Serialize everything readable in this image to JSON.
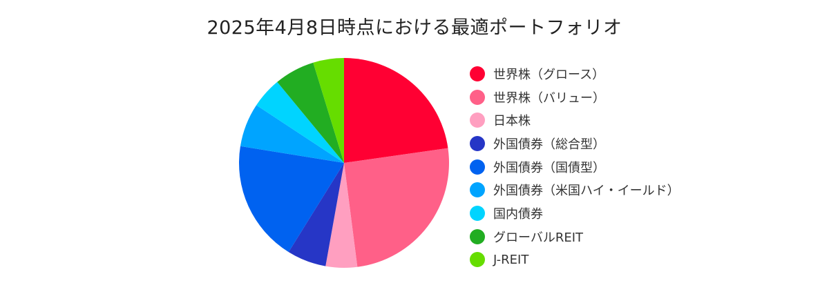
{
  "chart_data": {
    "type": "pie",
    "title": "2025年4月8日時点における最適ポートフォリオ",
    "legend_placement": "right",
    "start_angle": "12 o'clock",
    "direction": "clockwise",
    "unit": "percent",
    "series": [
      {
        "name": "世界株（グロース）",
        "value": 23.0,
        "color": "#FF0033"
      },
      {
        "name": "世界株（バリュー）",
        "value": 25.5,
        "color": "#FF6088"
      },
      {
        "name": "日本株",
        "value": 4.9,
        "color": "#FF9FC0"
      },
      {
        "name": "外国債券（総合型）",
        "value": 6.1,
        "color": "#2636C6"
      },
      {
        "name": "外国債券（国債型）",
        "value": 18.9,
        "color": "#0062F0"
      },
      {
        "name": "外国債券（米国ハイ・イールド）",
        "value": 6.8,
        "color": "#00A4FF"
      },
      {
        "name": "国内債券",
        "value": 4.8,
        "color": "#00D4FF"
      },
      {
        "name": "グローバルREIT",
        "value": 6.3,
        "color": "#22AD22"
      },
      {
        "name": "J-REIT",
        "value": 4.8,
        "color": "#66DD00"
      }
    ]
  }
}
